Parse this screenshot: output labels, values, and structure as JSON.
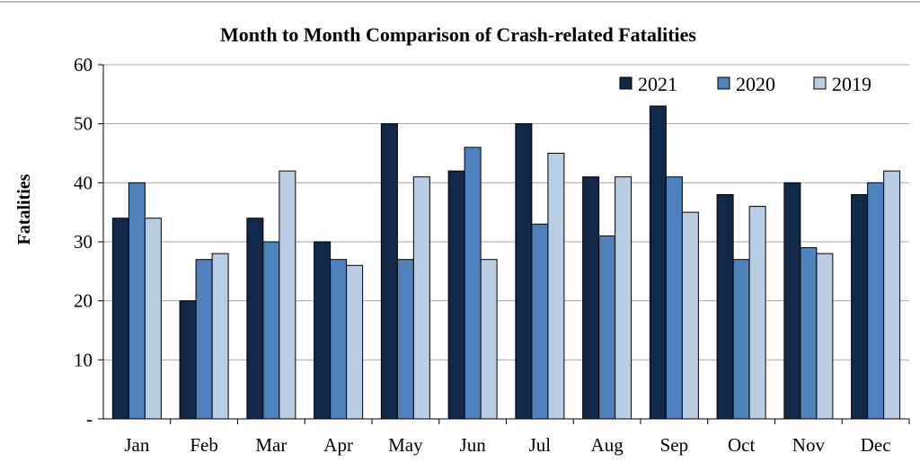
{
  "chart_data": {
    "type": "bar",
    "title": "Month to Month Comparison  of Crash-related Fatalities",
    "xlabel": "",
    "ylabel": "Fatalities",
    "ylim": [
      0,
      60
    ],
    "yticks": [
      "-",
      "10",
      "20",
      "30",
      "40",
      "50",
      "60"
    ],
    "grid": true,
    "legend_position": "top-right",
    "categories": [
      "Jan",
      "Feb",
      "Mar",
      "Apr",
      "May",
      "Jun",
      "Jul",
      "Aug",
      "Sep",
      "Oct",
      "Nov",
      "Dec"
    ],
    "series": [
      {
        "name": "2021",
        "color": "#12284a",
        "values": [
          34,
          20,
          34,
          30,
          50,
          42,
          50,
          41,
          53,
          38,
          40,
          38
        ]
      },
      {
        "name": "2020",
        "color": "#4f81bd",
        "values": [
          40,
          27,
          30,
          27,
          27,
          46,
          33,
          31,
          41,
          27,
          29,
          40
        ]
      },
      {
        "name": "2019",
        "color": "#b9cde5",
        "values": [
          34,
          28,
          42,
          26,
          41,
          27,
          45,
          41,
          35,
          36,
          28,
          42
        ]
      }
    ]
  }
}
